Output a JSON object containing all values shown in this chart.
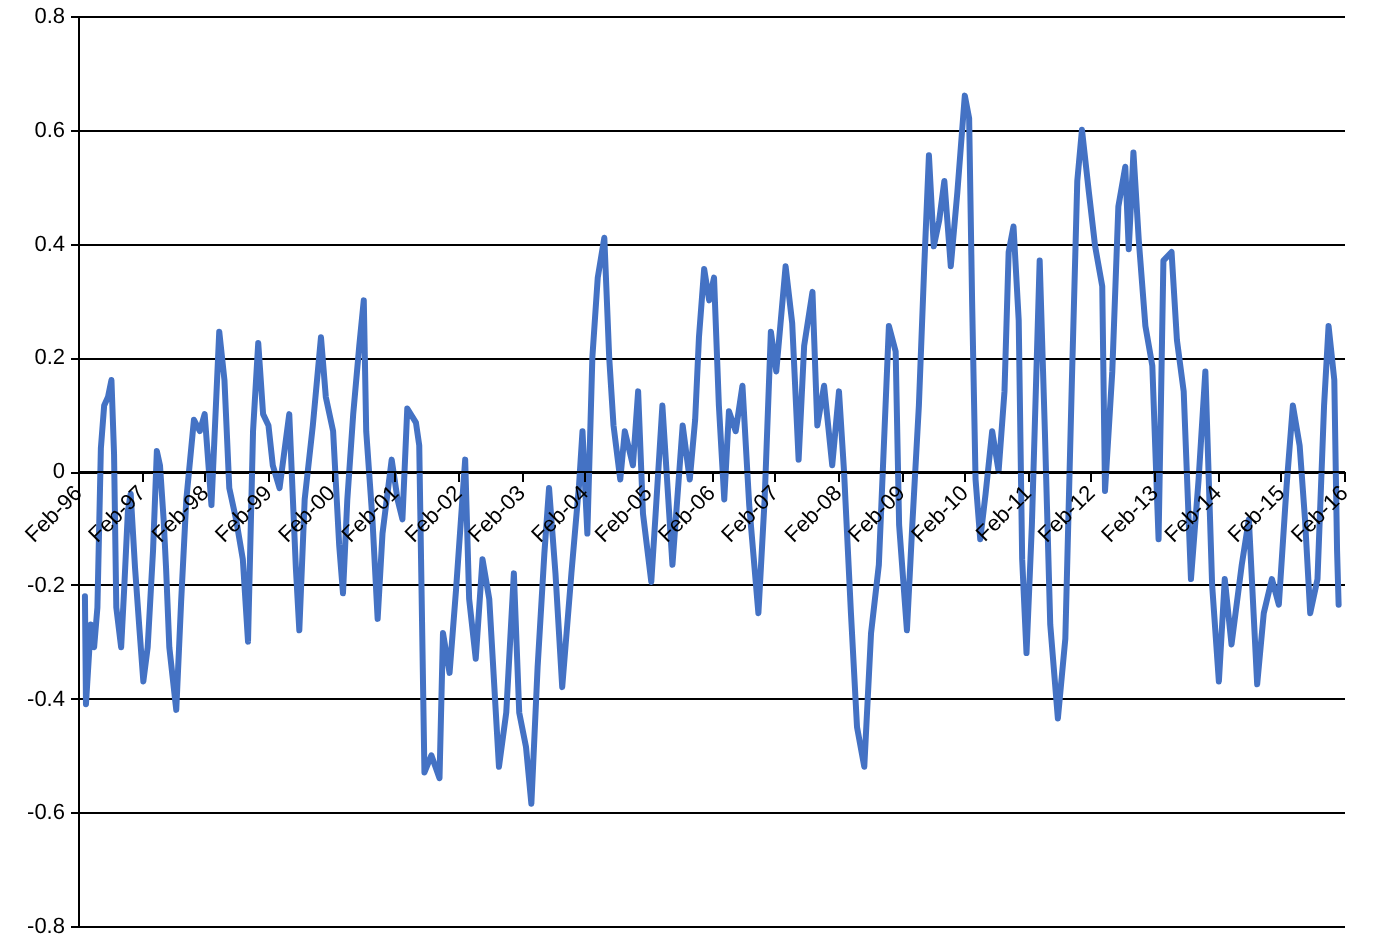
{
  "chart_data": {
    "type": "line",
    "grid": "y",
    "xlim": [
      "1996-02-01",
      "2016-02-01"
    ],
    "xticks": [
      {
        "value": "1996-02-01",
        "label": "Feb-96"
      },
      {
        "value": "1997-02-01",
        "label": "Feb-97"
      },
      {
        "value": "1998-02-01",
        "label": "Feb-98"
      },
      {
        "value": "1999-02-01",
        "label": "Feb-99"
      },
      {
        "value": "2000-02-01",
        "label": "Feb-00"
      },
      {
        "value": "2001-02-01",
        "label": "Feb-01"
      },
      {
        "value": "2002-02-01",
        "label": "Feb-02"
      },
      {
        "value": "2003-02-01",
        "label": "Feb-03"
      },
      {
        "value": "2004-02-01",
        "label": "Feb-04"
      },
      {
        "value": "2005-02-01",
        "label": "Feb-05"
      },
      {
        "value": "2006-02-01",
        "label": "Feb-06"
      },
      {
        "value": "2007-02-01",
        "label": "Feb-07"
      },
      {
        "value": "2008-02-01",
        "label": "Feb-08"
      },
      {
        "value": "2009-02-01",
        "label": "Feb-09"
      },
      {
        "value": "2010-02-01",
        "label": "Feb-10"
      },
      {
        "value": "2011-02-01",
        "label": "Feb-11"
      },
      {
        "value": "2012-02-01",
        "label": "Feb-12"
      },
      {
        "value": "2013-02-01",
        "label": "Feb-13"
      },
      {
        "value": "2014-02-01",
        "label": "Feb-14"
      },
      {
        "value": "2015-02-01",
        "label": "Feb-15"
      },
      {
        "value": "2016-02-01",
        "label": "Feb-16"
      }
    ],
    "ylim": [
      -0.8,
      0.8
    ],
    "yticks": [
      -0.8,
      -0.6,
      -0.4,
      -0.2,
      0,
      0.2,
      0.4,
      0.6,
      0.8
    ],
    "x": [
      "1996-03-12",
      "1996-03-18",
      "1996-04-15",
      "1996-05-04",
      "1996-05-23",
      "1996-06-12",
      "1996-07-01",
      "1996-07-23",
      "1996-08-12",
      "1996-08-27",
      "1996-09-09",
      "1996-10-07",
      "1996-10-24",
      "1996-11-15",
      "1996-12-01",
      "1996-12-26",
      "1997-01-21",
      "1997-02-12",
      "1997-03-09",
      "1997-04-09",
      "1997-05-01",
      "1997-05-19",
      "1997-06-09",
      "1997-06-23",
      "1997-07-12",
      "1997-08-21",
      "1997-09-18",
      "1997-10-18",
      "1997-12-01",
      "1998-01-04",
      "1998-02-01",
      "1998-03-12",
      "1998-04-26",
      "1998-05-26",
      "1998-06-23",
      "1998-08-01",
      "1998-09-09",
      "1998-10-09",
      "1998-11-07",
      "1998-12-07",
      "1999-01-04",
      "1999-02-04",
      "1999-03-01",
      "1999-04-09",
      "1999-06-04",
      "1999-07-12",
      "1999-08-01",
      "1999-09-01",
      "1999-10-18",
      "1999-12-04",
      "2000-01-01",
      "2000-02-12",
      "2000-03-18",
      "2000-04-09",
      "2000-05-04",
      "2000-06-07",
      "2000-07-12",
      "2000-08-07",
      "2000-08-21",
      "2000-09-26",
      "2000-10-26",
      "2000-11-23",
      "2001-01-15",
      "2001-02-18",
      "2001-03-18",
      "2001-04-15",
      "2001-06-04",
      "2001-06-23",
      "2001-07-23",
      "2001-09-01",
      "2001-10-18",
      "2001-11-07",
      "2001-12-15",
      "2002-01-21",
      "2002-03-15",
      "2002-04-07",
      "2002-05-15",
      "2002-06-23",
      "2002-08-01",
      "2002-09-26",
      "2002-11-07",
      "2002-12-21",
      "2003-01-21",
      "2003-03-01",
      "2003-04-01",
      "2003-05-07",
      "2003-06-15",
      "2003-07-12",
      "2003-08-18",
      "2003-09-26",
      "2003-11-18",
      "2004-01-01",
      "2004-01-21",
      "2004-02-18",
      "2004-03-18",
      "2004-04-18",
      "2004-05-26",
      "2004-06-23",
      "2004-07-18",
      "2004-08-26",
      "2004-09-21",
      "2004-11-07",
      "2004-12-07",
      "2005-01-04",
      "2005-02-21",
      "2005-03-18",
      "2005-04-26",
      "2005-06-23",
      "2005-08-21",
      "2005-10-01",
      "2005-11-01",
      "2005-11-23",
      "2005-12-23",
      "2006-01-21",
      "2006-02-18",
      "2006-03-18",
      "2006-04-18",
      "2006-05-15",
      "2006-06-23",
      "2006-08-01",
      "2006-09-09",
      "2006-11-01",
      "2006-12-07",
      "2007-01-12",
      "2007-02-12",
      "2007-04-07",
      "2007-05-15",
      "2007-06-21",
      "2007-07-23",
      "2007-09-09",
      "2007-10-07",
      "2007-11-15",
      "2008-01-01",
      "2008-02-09",
      "2008-03-09",
      "2008-04-18",
      "2008-05-23",
      "2008-07-04",
      "2008-08-12",
      "2008-09-26",
      "2008-11-23",
      "2009-01-01",
      "2009-01-21",
      "2009-03-07",
      "2009-04-07",
      "2009-05-15",
      "2009-06-15",
      "2009-07-12",
      "2009-08-09",
      "2009-09-09",
      "2009-10-09",
      "2009-11-15",
      "2009-12-23",
      "2010-02-04",
      "2010-03-01",
      "2010-03-18",
      "2010-04-07",
      "2010-05-04",
      "2010-06-04",
      "2010-07-12",
      "2010-08-18",
      "2010-09-21",
      "2010-10-15",
      "2010-11-12",
      "2010-12-12",
      "2011-01-01",
      "2011-01-26",
      "2011-02-26",
      "2011-04-12",
      "2011-05-12",
      "2011-06-12",
      "2011-07-26",
      "2011-09-07",
      "2011-10-15",
      "2011-11-15",
      "2011-12-12",
      "2012-01-21",
      "2012-02-26",
      "2012-04-07",
      "2012-04-23",
      "2012-06-04",
      "2012-07-09",
      "2012-08-18",
      "2012-09-07",
      "2012-10-04",
      "2012-11-04",
      "2012-12-12",
      "2013-01-21",
      "2013-02-26",
      "2013-03-26",
      "2013-05-12",
      "2013-06-12",
      "2013-07-21",
      "2013-09-01",
      "2013-10-15",
      "2013-11-23",
      "2014-01-01",
      "2014-02-09",
      "2014-03-15",
      "2014-04-23",
      "2014-06-21",
      "2014-08-01",
      "2014-09-18",
      "2014-10-26",
      "2014-12-12",
      "2015-01-21",
      "2015-03-07",
      "2015-04-12",
      "2015-05-21",
      "2015-06-21",
      "2015-07-21",
      "2015-09-01",
      "2015-10-09",
      "2015-11-04",
      "2015-12-07",
      "2015-12-23",
      "2016-01-01"
    ],
    "series": [
      {
        "color": "#4472c4",
        "values": [
          -0.22,
          -0.41,
          -0.27,
          -0.31,
          -0.24,
          0.04,
          0.115,
          0.13,
          0.16,
          0.03,
          -0.24,
          -0.31,
          -0.21,
          -0.07,
          -0.04,
          -0.17,
          -0.28,
          -0.37,
          -0.31,
          -0.14,
          0.035,
          0.01,
          -0.085,
          -0.17,
          -0.31,
          -0.42,
          -0.23,
          -0.05,
          0.09,
          0.07,
          0.1,
          -0.06,
          0.245,
          0.16,
          -0.03,
          -0.085,
          -0.155,
          -0.3,
          0.07,
          0.225,
          0.1,
          0.08,
          0.01,
          -0.03,
          0.1,
          -0.17,
          -0.28,
          -0.05,
          0.08,
          0.235,
          0.13,
          0.07,
          -0.13,
          -0.215,
          -0.05,
          0.1,
          0.22,
          0.3,
          0.07,
          -0.085,
          -0.26,
          -0.11,
          0.02,
          -0.05,
          -0.085,
          0.11,
          0.085,
          0.045,
          -0.53,
          -0.5,
          -0.54,
          -0.285,
          -0.355,
          -0.21,
          0.02,
          -0.225,
          -0.33,
          -0.155,
          -0.225,
          -0.52,
          -0.425,
          -0.18,
          -0.425,
          -0.485,
          -0.585,
          -0.345,
          -0.145,
          -0.03,
          -0.18,
          -0.38,
          -0.18,
          -0.025,
          0.07,
          -0.11,
          0.2,
          0.34,
          0.41,
          0.2,
          0.08,
          -0.015,
          0.07,
          0.01,
          0.14,
          -0.075,
          -0.195,
          -0.075,
          0.115,
          -0.165,
          0.08,
          -0.015,
          0.09,
          0.235,
          0.355,
          0.3,
          0.34,
          0.115,
          -0.05,
          0.105,
          0.07,
          0.15,
          -0.06,
          -0.25,
          -0.05,
          0.245,
          0.175,
          0.36,
          0.26,
          0.02,
          0.22,
          0.315,
          0.08,
          0.15,
          0.01,
          0.14,
          0,
          -0.25,
          -0.45,
          -0.52,
          -0.285,
          -0.165,
          0.255,
          0.21,
          -0.095,
          -0.28,
          -0.095,
          0.115,
          0.36,
          0.555,
          0.395,
          0.44,
          0.51,
          0.36,
          0.49,
          0.66,
          0.62,
          0.3,
          -0.015,
          -0.12,
          -0.04,
          0.07,
          0,
          0.14,
          0.385,
          0.43,
          0.265,
          -0.155,
          -0.32,
          -0.095,
          0.37,
          0.07,
          -0.27,
          -0.435,
          -0.295,
          0.16,
          0.51,
          0.6,
          0.49,
          0.395,
          0.325,
          -0.035,
          0.175,
          0.465,
          0.535,
          0.39,
          0.56,
          0.405,
          0.255,
          0.185,
          -0.12,
          0.37,
          0.385,
          0.23,
          0.14,
          -0.19,
          -0.015,
          0.175,
          -0.2,
          -0.37,
          -0.19,
          -0.305,
          -0.165,
          -0.085,
          -0.375,
          -0.25,
          -0.19,
          -0.235,
          -0.025,
          0.115,
          0.045,
          -0.085,
          -0.25,
          -0.19,
          0.115,
          0.255,
          0.16,
          -0.14,
          -0.235
        ]
      }
    ]
  }
}
